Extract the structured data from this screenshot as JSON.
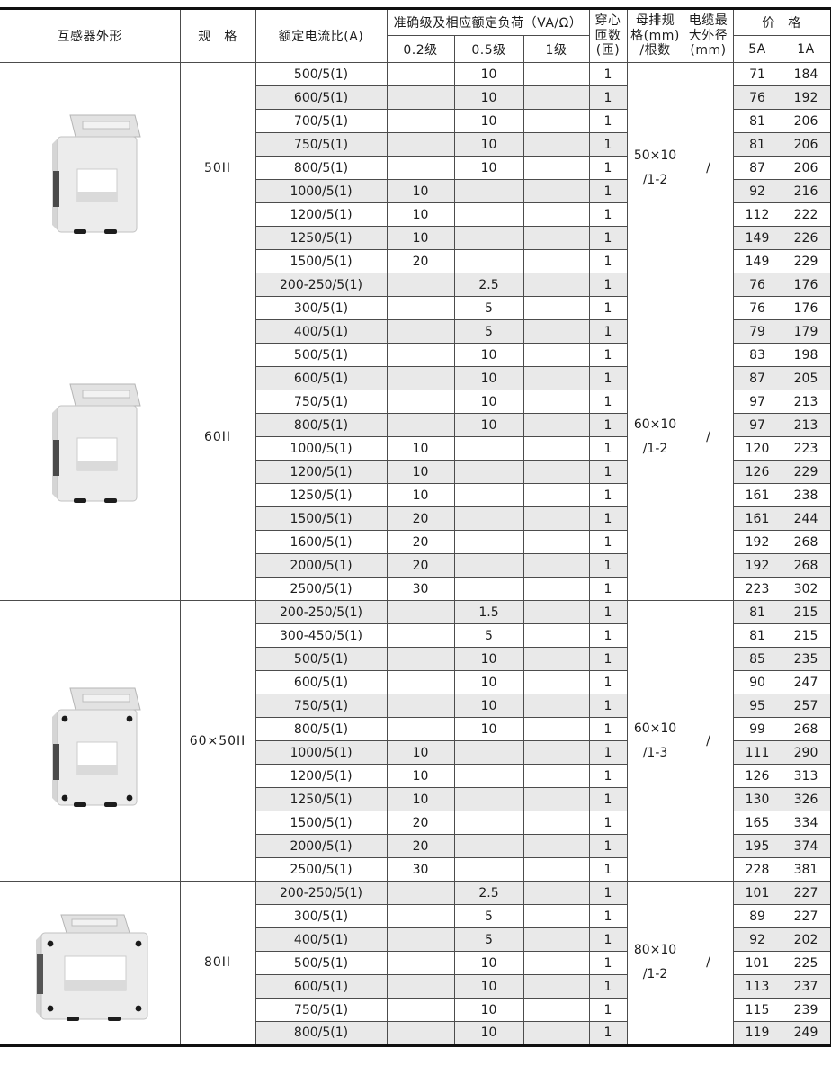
{
  "table": {
    "headers": {
      "appearance": "互感器外形",
      "spec": "规　格",
      "ratio": "额定电流比(A)",
      "accuracy_group": "准确级及相应额定负荷（VA/Ω）",
      "acc_02": "0.2级",
      "acc_05": "0.5级",
      "acc_1": "1级",
      "turns": "穿心\n匝数\n(匝)",
      "busbar": "母排规\n格(mm)\n/根数",
      "cable": "电缆最\n大外径\n(mm)",
      "price_group": "价　格",
      "price_5a": "5A",
      "price_1a": "1A"
    },
    "sections": [
      {
        "spec": "50II",
        "busbar": "50×10\n/1-2",
        "cable": "/",
        "image": "portrait-plain",
        "rows": [
          {
            "ratio": "500/5(1)",
            "acc02": "",
            "acc05": "10",
            "acc1": "",
            "turns": "1",
            "p5a": "71",
            "p1a": "184"
          },
          {
            "ratio": "600/5(1)",
            "acc02": "",
            "acc05": "10",
            "acc1": "",
            "turns": "1",
            "p5a": "76",
            "p1a": "192"
          },
          {
            "ratio": "700/5(1)",
            "acc02": "",
            "acc05": "10",
            "acc1": "",
            "turns": "1",
            "p5a": "81",
            "p1a": "206"
          },
          {
            "ratio": "750/5(1)",
            "acc02": "",
            "acc05": "10",
            "acc1": "",
            "turns": "1",
            "p5a": "81",
            "p1a": "206"
          },
          {
            "ratio": "800/5(1)",
            "acc02": "",
            "acc05": "10",
            "acc1": "",
            "turns": "1",
            "p5a": "87",
            "p1a": "206"
          },
          {
            "ratio": "1000/5(1)",
            "acc02": "10",
            "acc05": "",
            "acc1": "",
            "turns": "1",
            "p5a": "92",
            "p1a": "216"
          },
          {
            "ratio": "1200/5(1)",
            "acc02": "10",
            "acc05": "",
            "acc1": "",
            "turns": "1",
            "p5a": "112",
            "p1a": "222"
          },
          {
            "ratio": "1250/5(1)",
            "acc02": "10",
            "acc05": "",
            "acc1": "",
            "turns": "1",
            "p5a": "149",
            "p1a": "226"
          },
          {
            "ratio": "1500/5(1)",
            "acc02": "20",
            "acc05": "",
            "acc1": "",
            "turns": "1",
            "p5a": "149",
            "p1a": "229"
          }
        ]
      },
      {
        "spec": "60II",
        "busbar": "60×10\n/1-2",
        "cable": "/",
        "image": "portrait-plain",
        "rows": [
          {
            "ratio": "200-250/5(1)",
            "acc02": "",
            "acc05": "2.5",
            "acc1": "",
            "turns": "1",
            "p5a": "76",
            "p1a": "176"
          },
          {
            "ratio": "300/5(1)",
            "acc02": "",
            "acc05": "5",
            "acc1": "",
            "turns": "1",
            "p5a": "76",
            "p1a": "176"
          },
          {
            "ratio": "400/5(1)",
            "acc02": "",
            "acc05": "5",
            "acc1": "",
            "turns": "1",
            "p5a": "79",
            "p1a": "179"
          },
          {
            "ratio": "500/5(1)",
            "acc02": "",
            "acc05": "10",
            "acc1": "",
            "turns": "1",
            "p5a": "83",
            "p1a": "198"
          },
          {
            "ratio": "600/5(1)",
            "acc02": "",
            "acc05": "10",
            "acc1": "",
            "turns": "1",
            "p5a": "87",
            "p1a": "205"
          },
          {
            "ratio": "750/5(1)",
            "acc02": "",
            "acc05": "10",
            "acc1": "",
            "turns": "1",
            "p5a": "97",
            "p1a": "213"
          },
          {
            "ratio": "800/5(1)",
            "acc02": "",
            "acc05": "10",
            "acc1": "",
            "turns": "1",
            "p5a": "97",
            "p1a": "213"
          },
          {
            "ratio": "1000/5(1)",
            "acc02": "10",
            "acc05": "",
            "acc1": "",
            "turns": "1",
            "p5a": "120",
            "p1a": "223"
          },
          {
            "ratio": "1200/5(1)",
            "acc02": "10",
            "acc05": "",
            "acc1": "",
            "turns": "1",
            "p5a": "126",
            "p1a": "229"
          },
          {
            "ratio": "1250/5(1)",
            "acc02": "10",
            "acc05": "",
            "acc1": "",
            "turns": "1",
            "p5a": "161",
            "p1a": "238"
          },
          {
            "ratio": "1500/5(1)",
            "acc02": "20",
            "acc05": "",
            "acc1": "",
            "turns": "1",
            "p5a": "161",
            "p1a": "244"
          },
          {
            "ratio": "1600/5(1)",
            "acc02": "20",
            "acc05": "",
            "acc1": "",
            "turns": "1",
            "p5a": "192",
            "p1a": "268"
          },
          {
            "ratio": "2000/5(1)",
            "acc02": "20",
            "acc05": "",
            "acc1": "",
            "turns": "1",
            "p5a": "192",
            "p1a": "268"
          },
          {
            "ratio": "2500/5(1)",
            "acc02": "30",
            "acc05": "",
            "acc1": "",
            "turns": "1",
            "p5a": "223",
            "p1a": "302"
          }
        ]
      },
      {
        "spec": "60×50II",
        "busbar": "60×10\n/1-3",
        "cable": "/",
        "image": "portrait-screws",
        "rows": [
          {
            "ratio": "200-250/5(1)",
            "acc02": "",
            "acc05": "1.5",
            "acc1": "",
            "turns": "1",
            "p5a": "81",
            "p1a": "215"
          },
          {
            "ratio": "300-450/5(1)",
            "acc02": "",
            "acc05": "5",
            "acc1": "",
            "turns": "1",
            "p5a": "81",
            "p1a": "215"
          },
          {
            "ratio": "500/5(1)",
            "acc02": "",
            "acc05": "10",
            "acc1": "",
            "turns": "1",
            "p5a": "85",
            "p1a": "235"
          },
          {
            "ratio": "600/5(1)",
            "acc02": "",
            "acc05": "10",
            "acc1": "",
            "turns": "1",
            "p5a": "90",
            "p1a": "247"
          },
          {
            "ratio": "750/5(1)",
            "acc02": "",
            "acc05": "10",
            "acc1": "",
            "turns": "1",
            "p5a": "95",
            "p1a": "257"
          },
          {
            "ratio": "800/5(1)",
            "acc02": "",
            "acc05": "10",
            "acc1": "",
            "turns": "1",
            "p5a": "99",
            "p1a": "268"
          },
          {
            "ratio": "1000/5(1)",
            "acc02": "10",
            "acc05": "",
            "acc1": "",
            "turns": "1",
            "p5a": "111",
            "p1a": "290"
          },
          {
            "ratio": "1200/5(1)",
            "acc02": "10",
            "acc05": "",
            "acc1": "",
            "turns": "1",
            "p5a": "126",
            "p1a": "313"
          },
          {
            "ratio": "1250/5(1)",
            "acc02": "10",
            "acc05": "",
            "acc1": "",
            "turns": "1",
            "p5a": "130",
            "p1a": "326"
          },
          {
            "ratio": "1500/5(1)",
            "acc02": "20",
            "acc05": "",
            "acc1": "",
            "turns": "1",
            "p5a": "165",
            "p1a": "334"
          },
          {
            "ratio": "2000/5(1)",
            "acc02": "20",
            "acc05": "",
            "acc1": "",
            "turns": "1",
            "p5a": "195",
            "p1a": "374"
          },
          {
            "ratio": "2500/5(1)",
            "acc02": "30",
            "acc05": "",
            "acc1": "",
            "turns": "1",
            "p5a": "228",
            "p1a": "381"
          }
        ]
      },
      {
        "spec": "80II",
        "busbar": "80×10\n/1-2",
        "cable": "/",
        "image": "landscape-screws",
        "rows": [
          {
            "ratio": "200-250/5(1)",
            "acc02": "",
            "acc05": "2.5",
            "acc1": "",
            "turns": "1",
            "p5a": "101",
            "p1a": "227"
          },
          {
            "ratio": "300/5(1)",
            "acc02": "",
            "acc05": "5",
            "acc1": "",
            "turns": "1",
            "p5a": "89",
            "p1a": "227"
          },
          {
            "ratio": "400/5(1)",
            "acc02": "",
            "acc05": "5",
            "acc1": "",
            "turns": "1",
            "p5a": "92",
            "p1a": "202"
          },
          {
            "ratio": "500/5(1)",
            "acc02": "",
            "acc05": "10",
            "acc1": "",
            "turns": "1",
            "p5a": "101",
            "p1a": "225"
          },
          {
            "ratio": "600/5(1)",
            "acc02": "",
            "acc05": "10",
            "acc1": "",
            "turns": "1",
            "p5a": "113",
            "p1a": "237"
          },
          {
            "ratio": "750/5(1)",
            "acc02": "",
            "acc05": "10",
            "acc1": "",
            "turns": "1",
            "p5a": "115",
            "p1a": "239"
          },
          {
            "ratio": "800/5(1)",
            "acc02": "",
            "acc05": "10",
            "acc1": "",
            "turns": "1",
            "p5a": "119",
            "p1a": "249"
          }
        ]
      }
    ]
  },
  "colors": {
    "stripe": "#e9e9e9",
    "grid_line": "#4c4c4c",
    "outer_frame": "#101010",
    "text": "#1c1c1c"
  }
}
